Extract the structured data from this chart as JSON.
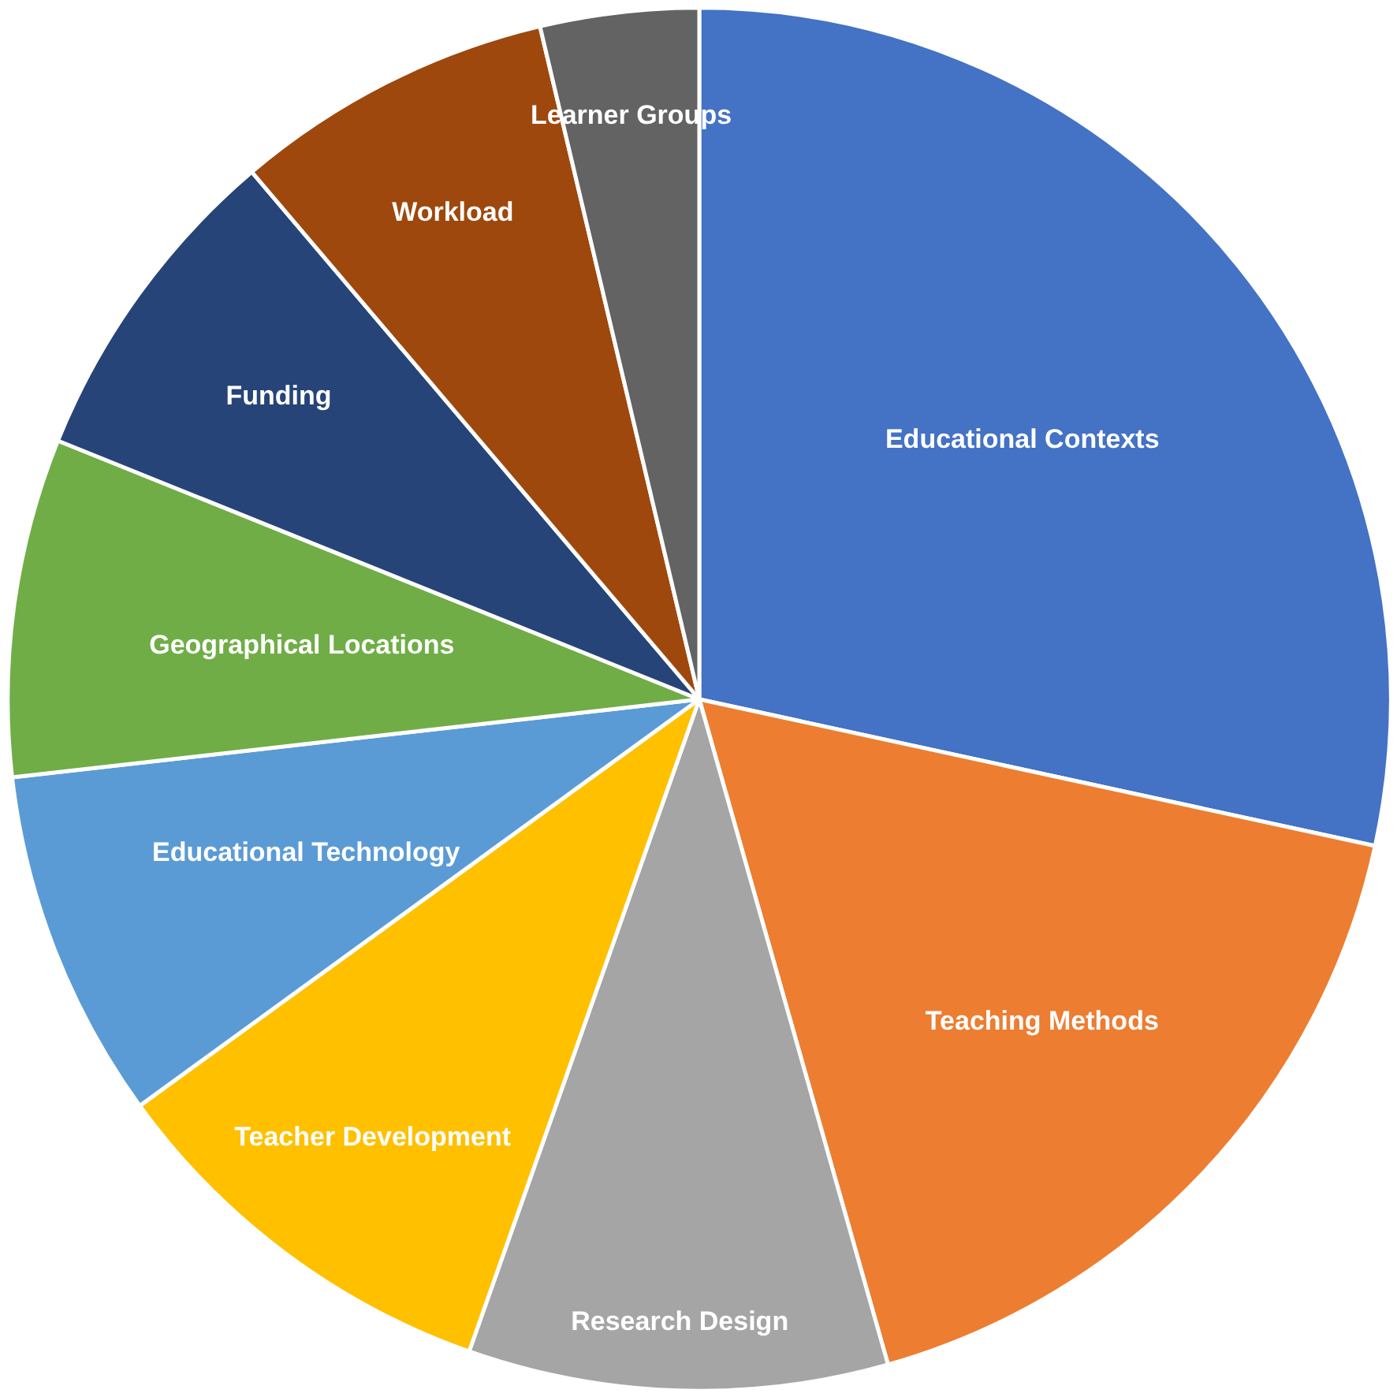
{
  "chart_data": {
    "type": "pie",
    "categories": [
      "Educational Contexts",
      "Teaching Methods",
      "Research Design",
      "Teacher Development",
      "Educational Technology",
      "Geographical Locations",
      "Funding",
      "Workload",
      "Learner Groups"
    ],
    "values": [
      28.4,
      17.2,
      9.8,
      9.6,
      8.2,
      7.9,
      7.7,
      7.5,
      3.7
    ],
    "colors": [
      "#4472c4",
      "#ed7d31",
      "#a5a5a5",
      "#ffc000",
      "#5b9bd5",
      "#70ad47",
      "#264478",
      "#9e480e",
      "#636363"
    ],
    "legend": false
  }
}
